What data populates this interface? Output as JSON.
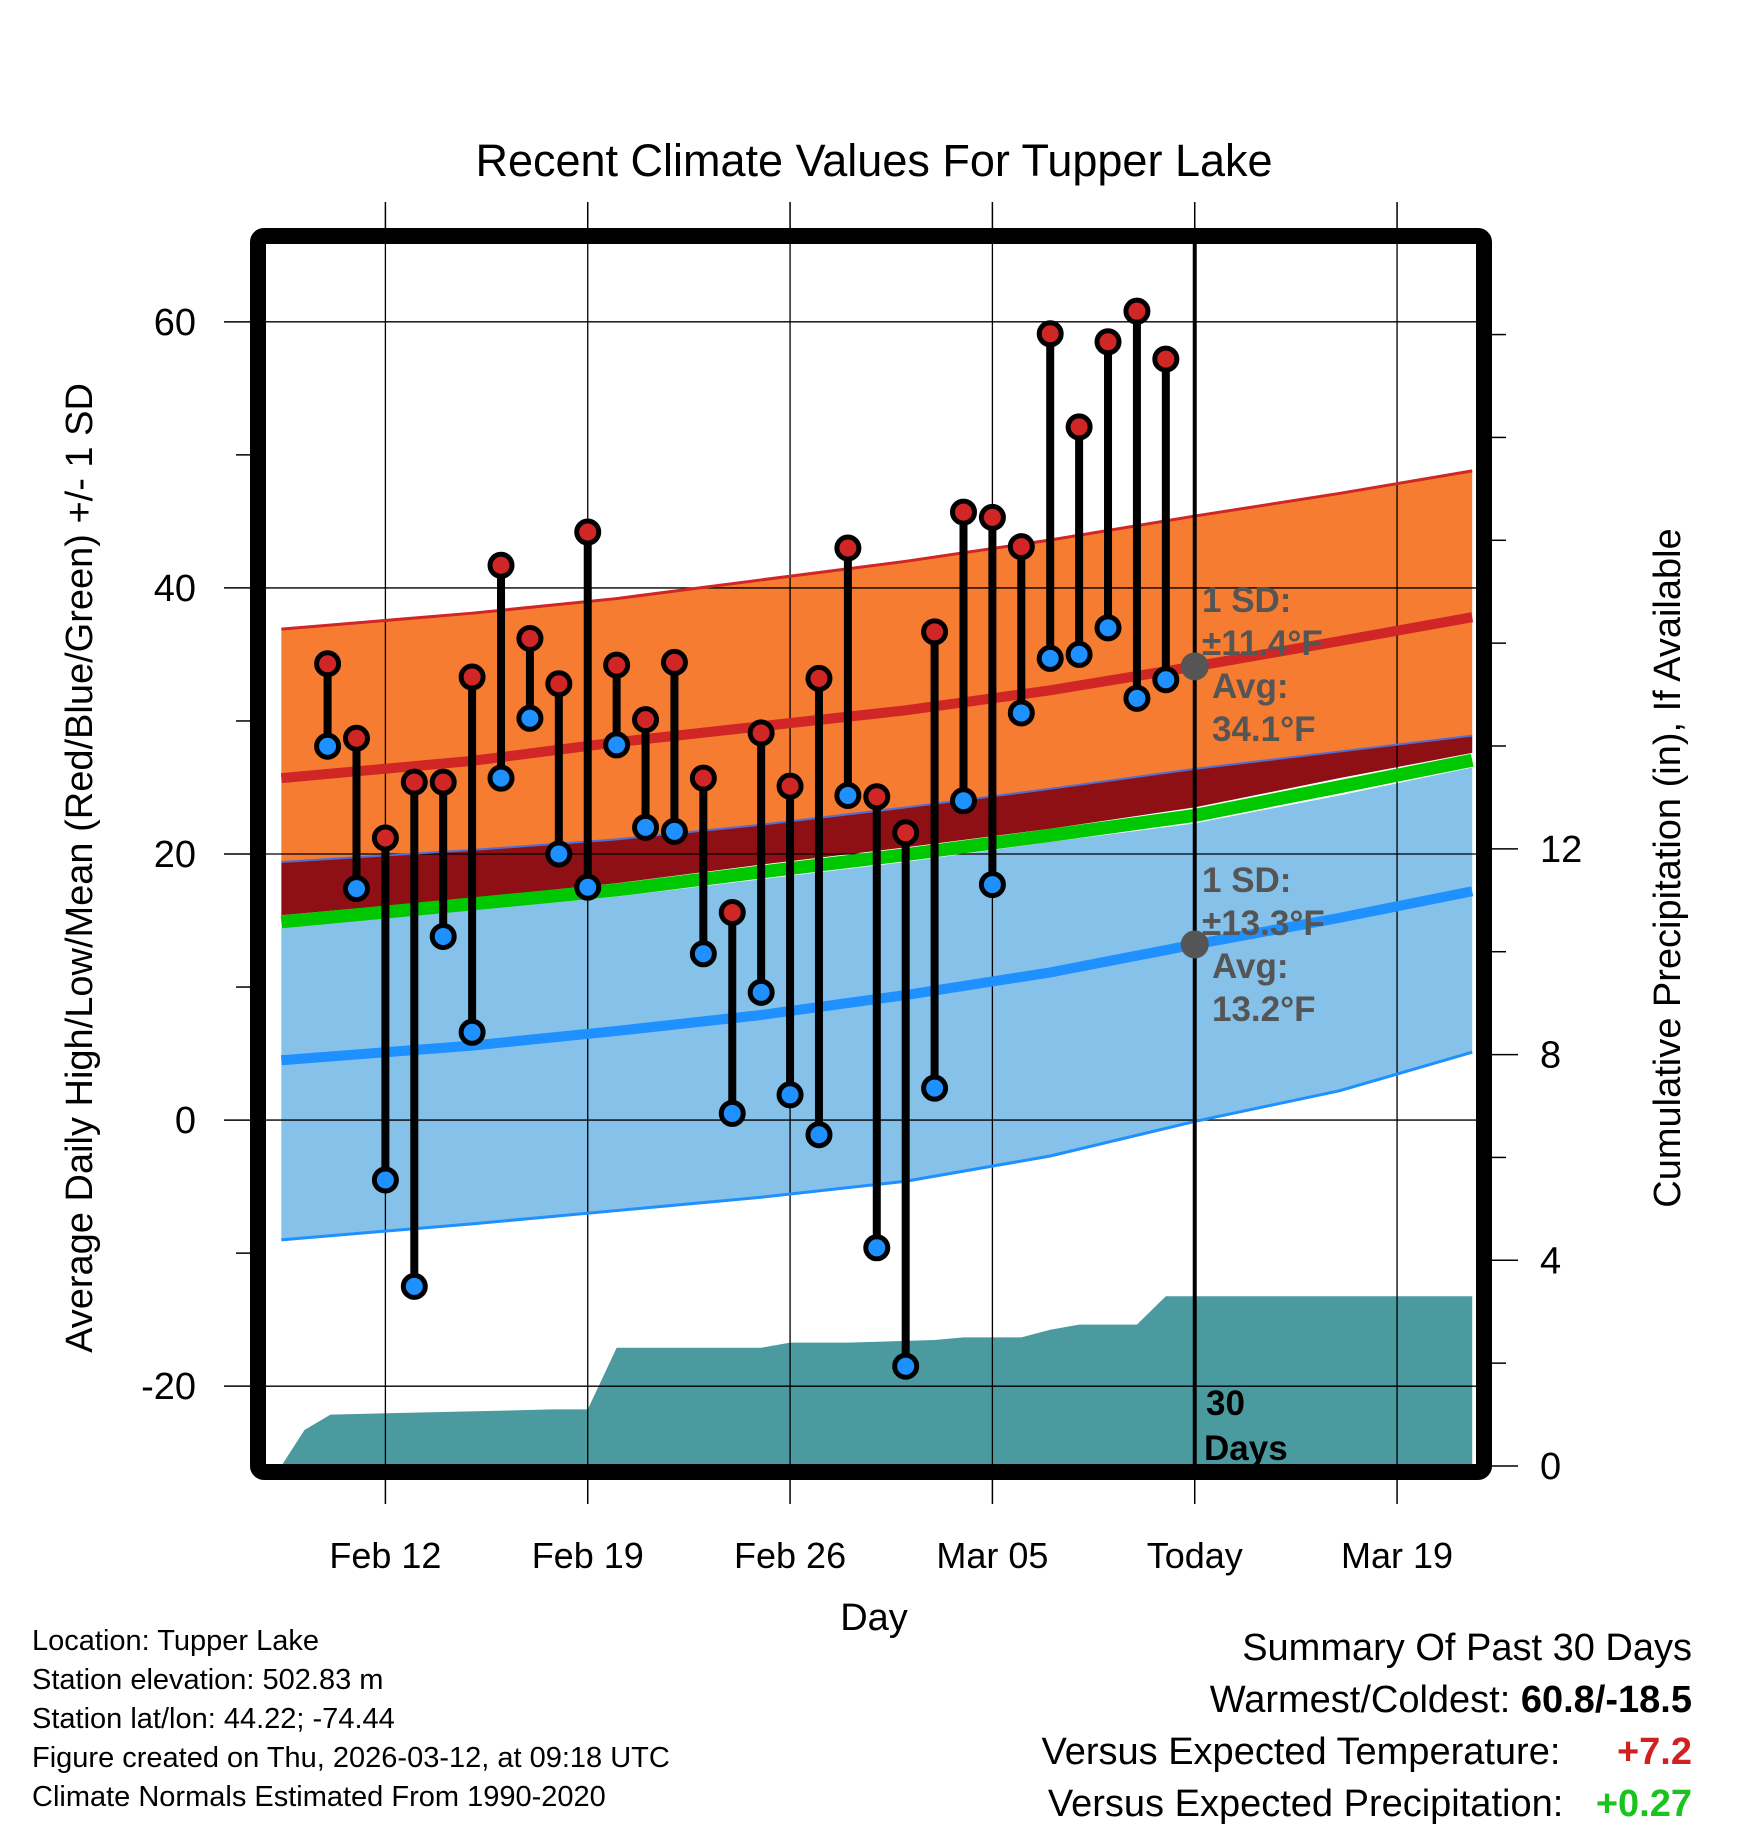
{
  "colors": {
    "high": "#d02626",
    "low": "#1e90ff",
    "normal_high_band": "#f57c30",
    "normal_low_band": "#85c1e8",
    "mean_band": "#8e1014",
    "mean_line": "#00c800",
    "precip_fill": "#4a9aa0",
    "annotation": "#555555",
    "pos_temp": "#d22020",
    "pos_precip": "#19c41f"
  },
  "chart_data": {
    "type": "line",
    "title": "Recent Climate Values For Tupper Lake",
    "xlabel": "Day",
    "ylabel": "Average Daily High/Low/Mean (Red/Blue/Green) +/- 1 SD",
    "y2label": "Cumulative Precipitation (in), If Available",
    "grid": true,
    "day_range": [
      -32.2,
      9.8
    ],
    "ylim": [
      -26,
      66
    ],
    "y2lim": [
      0,
      23.8
    ],
    "x_ticks": [
      {
        "day": -28,
        "label": "Feb 12"
      },
      {
        "day": -21,
        "label": "Feb 19"
      },
      {
        "day": -14,
        "label": "Feb 26"
      },
      {
        "day": -7,
        "label": "Mar 05"
      },
      {
        "day": 0,
        "label": "Today"
      },
      {
        "day": 7,
        "label": "Mar 19"
      }
    ],
    "y_ticks": [
      {
        "value": -20,
        "label": "-20"
      },
      {
        "value": 0,
        "label": "0"
      },
      {
        "value": 20,
        "label": "20"
      },
      {
        "value": 40,
        "label": "40"
      },
      {
        "value": 60,
        "label": "60"
      }
    ],
    "y2_ticks": [
      {
        "value": 0,
        "label": "0"
      },
      {
        "value": 4,
        "label": "4"
      },
      {
        "value": 8,
        "label": "8"
      },
      {
        "value": 12,
        "label": "12"
      }
    ],
    "observed": {
      "days": [
        -30,
        -29,
        -28,
        -27,
        -26,
        -25,
        -24,
        -23,
        -22,
        -21,
        -20,
        -19,
        -18,
        -17,
        -16,
        -15,
        -14,
        -13,
        -12,
        -11,
        -10,
        -9,
        -8,
        -7,
        -6,
        -5,
        -4,
        -3,
        -2,
        -1
      ],
      "highs": [
        34.3,
        28.7,
        21.2,
        25.4,
        25.4,
        33.3,
        41.7,
        36.2,
        32.8,
        44.2,
        34.2,
        30.1,
        34.4,
        25.7,
        15.6,
        29.1,
        25.1,
        33.2,
        43.0,
        24.3,
        21.6,
        36.7,
        45.7,
        45.3,
        43.1,
        59.1,
        52.1,
        58.5,
        60.8,
        57.2
      ],
      "lows": [
        28.1,
        17.4,
        -4.5,
        -12.5,
        13.8,
        6.6,
        25.7,
        30.2,
        20.0,
        17.5,
        28.2,
        22.0,
        21.7,
        12.5,
        0.5,
        9.6,
        1.9,
        -1.1,
        24.4,
        -9.6,
        -18.5,
        2.4,
        24.0,
        17.7,
        30.6,
        34.7,
        35.0,
        37.0,
        31.7,
        33.1
      ]
    },
    "normals": {
      "days": [
        -31.6,
        -25,
        -20,
        -15,
        -10,
        -5,
        0,
        5,
        9.6
      ],
      "high_plus_sd": [
        36.9,
        38.1,
        39.2,
        40.6,
        42.0,
        43.6,
        45.4,
        47.1,
        48.8
      ],
      "high_mean": [
        25.7,
        27.0,
        28.4,
        29.6,
        30.8,
        32.3,
        34.1,
        36.0,
        37.8
      ],
      "high_minus_sd": [
        19.4,
        20.3,
        21.1,
        22.2,
        23.5,
        24.9,
        26.4,
        27.7,
        28.9
      ],
      "mean_mean": [
        15.4,
        16.7,
        17.8,
        19.2,
        20.5,
        21.9,
        23.5,
        25.7,
        27.6
      ],
      "low_plus_sd": [
        14.4,
        15.8,
        16.8,
        18.1,
        19.4,
        20.9,
        22.3,
        24.4,
        26.5
      ],
      "low_mean": [
        4.5,
        5.6,
        6.7,
        7.9,
        9.4,
        11.1,
        13.2,
        15.2,
        17.2
      ],
      "low_minus_sd": [
        -9.0,
        -7.8,
        -6.8,
        -5.8,
        -4.6,
        -2.7,
        -0.1,
        2.2,
        5.1
      ]
    },
    "precip": {
      "days": [
        -31.6,
        -30.8,
        -29.9,
        -22.2,
        -21.0,
        -20.0,
        -18.0,
        -15.0,
        -14.0,
        -12.0,
        -9.0,
        -8.0,
        -6.0,
        -5.0,
        -4.0,
        -2.0,
        -1.0,
        9.6
      ],
      "cumulative": [
        0.0,
        0.7,
        1.0,
        1.1,
        1.1,
        2.3,
        2.3,
        2.3,
        2.4,
        2.4,
        2.45,
        2.5,
        2.5,
        2.65,
        2.75,
        2.75,
        3.3,
        3.3
      ]
    },
    "annotations": {
      "high_sd_label": "1 SD:",
      "high_sd_value": "±11.4°F",
      "high_avg_label": "Avg:",
      "high_avg_value": "34.1°F",
      "low_sd_label": "1 SD:",
      "low_sd_value": "±13.3°F",
      "low_avg_label": "Avg:",
      "low_avg_value": "13.2°F",
      "days_count": "30",
      "days_word": "Days"
    }
  },
  "info": {
    "location": "Location: Tupper Lake",
    "elevation": "Station elevation: 502.83 m",
    "latlon": "Station lat/lon: 44.22; -74.44",
    "created": "Figure created on Thu, 2026-03-12, at 09:18 UTC",
    "normals": "Climate Normals Estimated From 1990-2020"
  },
  "summary": {
    "title": "Summary Of Past 30 Days",
    "warm_cold_label": "Warmest/Coldest:",
    "warm_cold_value": "60.8/-18.5",
    "temp_label": "Versus Expected Temperature:",
    "temp_value": "+7.2",
    "precip_label": "Versus Expected Precipitation:",
    "precip_value": "+0.27"
  }
}
